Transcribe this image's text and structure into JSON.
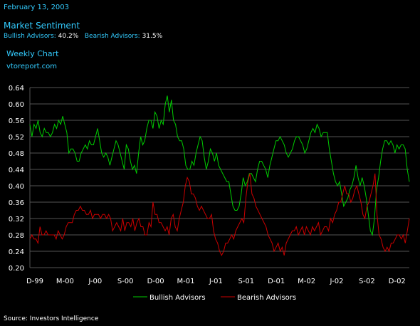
{
  "header": {
    "date": "February 13, 2003",
    "title": "Market Sentiment",
    "bullish_label": "Bullish Advisors:",
    "bullish_value": "40.2%",
    "bearish_label": "Bearish Advisors:",
    "bearish_value": "31.5%",
    "chart_label": "Weekly Chart",
    "site": "vtoreport.com"
  },
  "footer": {
    "source": "Source: Investors Intelligence"
  },
  "colors": {
    "background": "#000000",
    "accent": "#33CCFF",
    "bullish": "#00CC00",
    "bearish": "#CC0000",
    "grid": "#555555"
  },
  "chart_data": {
    "type": "line",
    "title": "",
    "xlabel": "",
    "ylabel": "",
    "ylim": [
      0.2,
      0.64
    ],
    "yticks": [
      "0.20",
      "0.24",
      "0.28",
      "0.32",
      "0.36",
      "0.40",
      "0.44",
      "0.48",
      "0.52",
      "0.56",
      "0.60",
      "0.64"
    ],
    "xticks": [
      "D-99",
      "M-00",
      "J-00",
      "S-00",
      "D-00",
      "M-01",
      "J-01",
      "S-01",
      "D-01",
      "M-02",
      "J-02",
      "S-02",
      "D-02"
    ],
    "grid": true,
    "legend": "bottom",
    "series": [
      {
        "name": "Bullish Advisors",
        "color": "#00CC00",
        "values": [
          0.55,
          0.52,
          0.55,
          0.54,
          0.56,
          0.53,
          0.52,
          0.54,
          0.53,
          0.53,
          0.52,
          0.53,
          0.55,
          0.54,
          0.56,
          0.55,
          0.57,
          0.55,
          0.53,
          0.48,
          0.49,
          0.49,
          0.48,
          0.46,
          0.46,
          0.48,
          0.49,
          0.5,
          0.49,
          0.51,
          0.5,
          0.5,
          0.52,
          0.54,
          0.51,
          0.48,
          0.47,
          0.48,
          0.47,
          0.45,
          0.47,
          0.49,
          0.51,
          0.5,
          0.48,
          0.46,
          0.44,
          0.5,
          0.49,
          0.46,
          0.44,
          0.45,
          0.43,
          0.48,
          0.52,
          0.5,
          0.51,
          0.54,
          0.56,
          0.56,
          0.54,
          0.58,
          0.57,
          0.54,
          0.56,
          0.55,
          0.6,
          0.62,
          0.58,
          0.61,
          0.56,
          0.55,
          0.52,
          0.51,
          0.51,
          0.49,
          0.45,
          0.44,
          0.44,
          0.46,
          0.45,
          0.48,
          0.5,
          0.52,
          0.51,
          0.47,
          0.44,
          0.46,
          0.49,
          0.48,
          0.46,
          0.48,
          0.45,
          0.44,
          0.43,
          0.42,
          0.41,
          0.41,
          0.38,
          0.35,
          0.34,
          0.34,
          0.35,
          0.38,
          0.42,
          0.4,
          0.41,
          0.43,
          0.43,
          0.42,
          0.41,
          0.44,
          0.46,
          0.46,
          0.45,
          0.44,
          0.42,
          0.45,
          0.47,
          0.49,
          0.51,
          0.51,
          0.52,
          0.51,
          0.5,
          0.48,
          0.47,
          0.48,
          0.49,
          0.51,
          0.52,
          0.52,
          0.51,
          0.5,
          0.48,
          0.49,
          0.51,
          0.53,
          0.54,
          0.53,
          0.55,
          0.54,
          0.52,
          0.53,
          0.53,
          0.53,
          0.49,
          0.46,
          0.43,
          0.41,
          0.4,
          0.41,
          0.38,
          0.35,
          0.36,
          0.37,
          0.39,
          0.4,
          0.42,
          0.45,
          0.42,
          0.4,
          0.42,
          0.4,
          0.37,
          0.33,
          0.29,
          0.28,
          0.32,
          0.39,
          0.42,
          0.46,
          0.49,
          0.51,
          0.51,
          0.5,
          0.51,
          0.5,
          0.48,
          0.5,
          0.49,
          0.5,
          0.5,
          0.49,
          0.44,
          0.41
        ]
      },
      {
        "name": "Bearish Advisors",
        "color": "#CC0000",
        "values": [
          0.27,
          0.28,
          0.27,
          0.27,
          0.26,
          0.3,
          0.28,
          0.28,
          0.29,
          0.28,
          0.28,
          0.28,
          0.28,
          0.27,
          0.29,
          0.28,
          0.27,
          0.28,
          0.3,
          0.31,
          0.31,
          0.31,
          0.33,
          0.34,
          0.34,
          0.35,
          0.34,
          0.34,
          0.33,
          0.33,
          0.34,
          0.32,
          0.33,
          0.33,
          0.33,
          0.32,
          0.33,
          0.33,
          0.32,
          0.33,
          0.32,
          0.29,
          0.3,
          0.31,
          0.3,
          0.29,
          0.32,
          0.29,
          0.31,
          0.31,
          0.3,
          0.32,
          0.29,
          0.31,
          0.32,
          0.3,
          0.3,
          0.28,
          0.28,
          0.31,
          0.3,
          0.36,
          0.33,
          0.33,
          0.31,
          0.31,
          0.3,
          0.29,
          0.3,
          0.28,
          0.32,
          0.33,
          0.3,
          0.29,
          0.32,
          0.34,
          0.36,
          0.4,
          0.42,
          0.41,
          0.38,
          0.38,
          0.37,
          0.35,
          0.34,
          0.35,
          0.34,
          0.33,
          0.32,
          0.32,
          0.33,
          0.29,
          0.27,
          0.26,
          0.24,
          0.23,
          0.24,
          0.26,
          0.26,
          0.27,
          0.28,
          0.27,
          0.29,
          0.3,
          0.31,
          0.32,
          0.31,
          0.37,
          0.41,
          0.43,
          0.38,
          0.37,
          0.35,
          0.34,
          0.33,
          0.32,
          0.31,
          0.3,
          0.28,
          0.27,
          0.26,
          0.24,
          0.25,
          0.26,
          0.24,
          0.25,
          0.23,
          0.26,
          0.27,
          0.28,
          0.29,
          0.29,
          0.3,
          0.28,
          0.29,
          0.3,
          0.28,
          0.3,
          0.29,
          0.28,
          0.3,
          0.29,
          0.3,
          0.31,
          0.28,
          0.29,
          0.3,
          0.3,
          0.29,
          0.32,
          0.31,
          0.33,
          0.34,
          0.36,
          0.36,
          0.38,
          0.4,
          0.38,
          0.38,
          0.36,
          0.37,
          0.39,
          0.4,
          0.38,
          0.36,
          0.33,
          0.32,
          0.35,
          0.36,
          0.38,
          0.4,
          0.43,
          0.33,
          0.28,
          0.27,
          0.25,
          0.24,
          0.25,
          0.24,
          0.26,
          0.26,
          0.27,
          0.28,
          0.28,
          0.27,
          0.28,
          0.26,
          0.29,
          0.32
        ]
      }
    ]
  }
}
